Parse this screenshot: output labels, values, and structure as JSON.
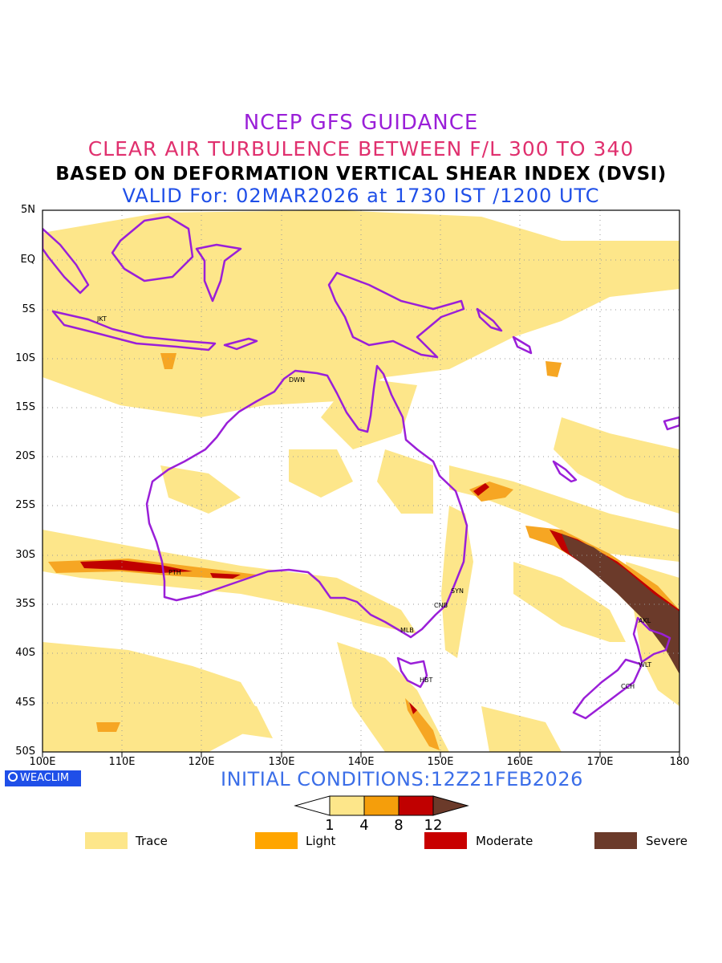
{
  "header": {
    "line1": "NCEP GFS GUIDANCE",
    "line2": "CLEAR AIR TURBULENCE BETWEEN F/L 300 TO 340",
    "line3": "BASED ON DEFORMATION VERTICAL SHEAR INDEX (DVSI)",
    "line4": "VALID For: 02MAR2026 at 1730 IST /1200 UTC"
  },
  "axes": {
    "lat_labels": [
      "5N",
      "EQ",
      "5S",
      "10S",
      "15S",
      "20S",
      "25S",
      "30S",
      "35S",
      "40S",
      "45S",
      "50S"
    ],
    "lon_labels": [
      "100E",
      "110E",
      "120E",
      "130E",
      "140E",
      "150E",
      "160E",
      "170E",
      "180"
    ]
  },
  "cities": [
    {
      "name": "JKT",
      "lon": 106.8,
      "lat": -6.2
    },
    {
      "name": "DWN",
      "lon": 130.8,
      "lat": -12.4
    },
    {
      "name": "PTH",
      "lon": 115.9,
      "lat": -31.9
    },
    {
      "name": "SYN",
      "lon": 151.2,
      "lat": -33.9
    },
    {
      "name": "CNB",
      "lon": 149.1,
      "lat": -35.3
    },
    {
      "name": "MLB",
      "lon": 144.9,
      "lat": -37.8
    },
    {
      "name": "HBT",
      "lon": 147.3,
      "lat": -42.9
    },
    {
      "name": "AKL",
      "lon": 174.8,
      "lat": -36.8
    },
    {
      "name": "WLT",
      "lon": 174.8,
      "lat": -41.3
    },
    {
      "name": "CCH",
      "lon": 172.6,
      "lat": -43.5
    }
  ],
  "branding": {
    "badge": "WEACLIM"
  },
  "initial_conditions": "INITIAL CONDITIONS:12Z21FEB2026",
  "colorbar": {
    "ticks": [
      "1",
      "4",
      "8",
      "12"
    ],
    "colors": [
      "#fde68a",
      "#f59e0b",
      "#c00000",
      "#6b3a2a"
    ]
  },
  "legend": [
    {
      "label": "Trace",
      "color": "#fde68a"
    },
    {
      "label": "Light",
      "color": "#ffa500"
    },
    {
      "label": "Moderate",
      "color": "#c80000"
    },
    {
      "label": "Severe",
      "color": "#6b3a2a"
    }
  ],
  "colors": {
    "coast": "#9a1fd8",
    "trace": "#fde68a",
    "light": "#f6a623",
    "moderate": "#c00000",
    "severe": "#6b3a2a"
  }
}
